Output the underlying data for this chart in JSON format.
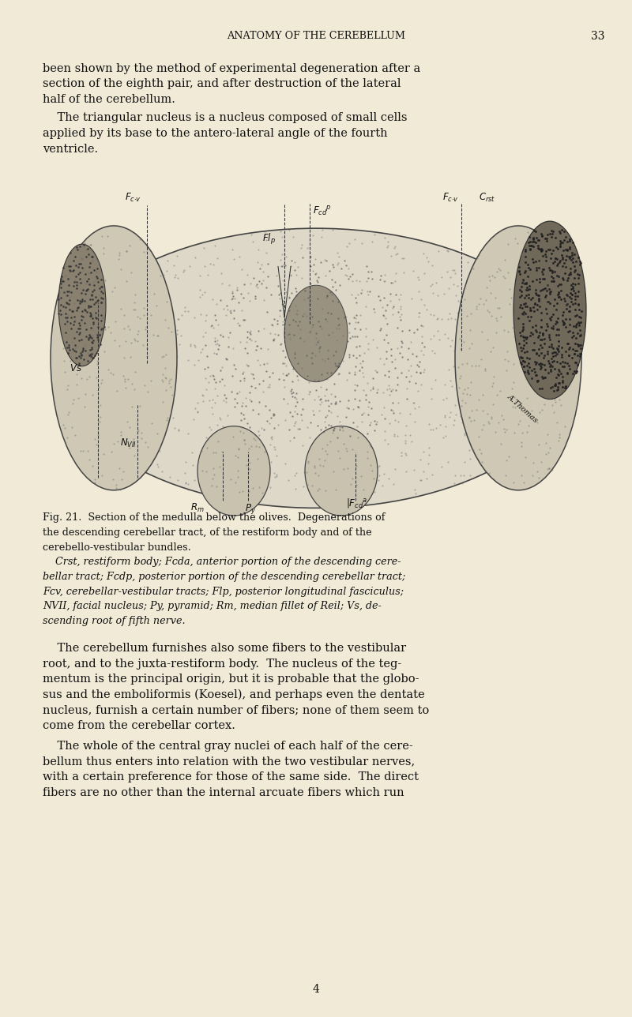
{
  "background_color": "#f0ead6",
  "page_width": 8.0,
  "page_height": 12.88,
  "dpi": 100,
  "header_text": "ANATOMY OF THE CEREBELLUM",
  "header_page_num": "33",
  "footer_num": "4",
  "body_lines_1": [
    "been shown by the method of experimental degeneration after a",
    "section of the eighth pair, and after destruction of the lateral",
    "half of the cerebellum."
  ],
  "body_lines_2": [
    "    The triangular nucleus is a nucleus composed of small cells",
    "applied by its base to the antero-lateral angle of the fourth",
    "ventricle."
  ],
  "caption_lines": [
    [
      "bold",
      "Fig. 21.  Section of the medulla below the olives.  Degenerations of"
    ],
    [
      "normal",
      "the descending cerebellar tract, of the restiform body and of the"
    ],
    [
      "normal",
      "cerebello-vestibular bundles."
    ],
    [
      "italic",
      "    Crst, restiform body; Fcda, anterior portion of the descending cere-"
    ],
    [
      "italic",
      "bellar tract; Fcdp, posterior portion of the descending cerebellar tract;"
    ],
    [
      "italic",
      "Fcv, cerebellar-vestibular tracts; Flp, posterior longitudinal fasciculus;"
    ],
    [
      "italic",
      "NVII, facial nucleus; Py, pyramid; Rm, median fillet of Reil; Vs, de-"
    ],
    [
      "italic",
      "scending root of fifth nerve."
    ]
  ],
  "bottom_lines_1": [
    "    The cerebellum furnishes also some fibers to the vestibular",
    "root, and to the juxta-restiform body.  The nucleus of the teg-",
    "mentum is the principal origin, but it is probable that the globo-",
    "sus and the emboliformis (Koesel), and perhaps even the dentate",
    "nucleus, furnish a certain number of fibers; none of them seem to",
    "come from the cerebellar cortex."
  ],
  "bottom_lines_2": [
    "    The whole of the central gray nuclei of each half of the cere-",
    "bellum thus enters into relation with the two vestibular nerves,",
    "with a certain preference for those of the same side.  The direct",
    "fibers are no other than the internal arcuate fibers which run"
  ]
}
